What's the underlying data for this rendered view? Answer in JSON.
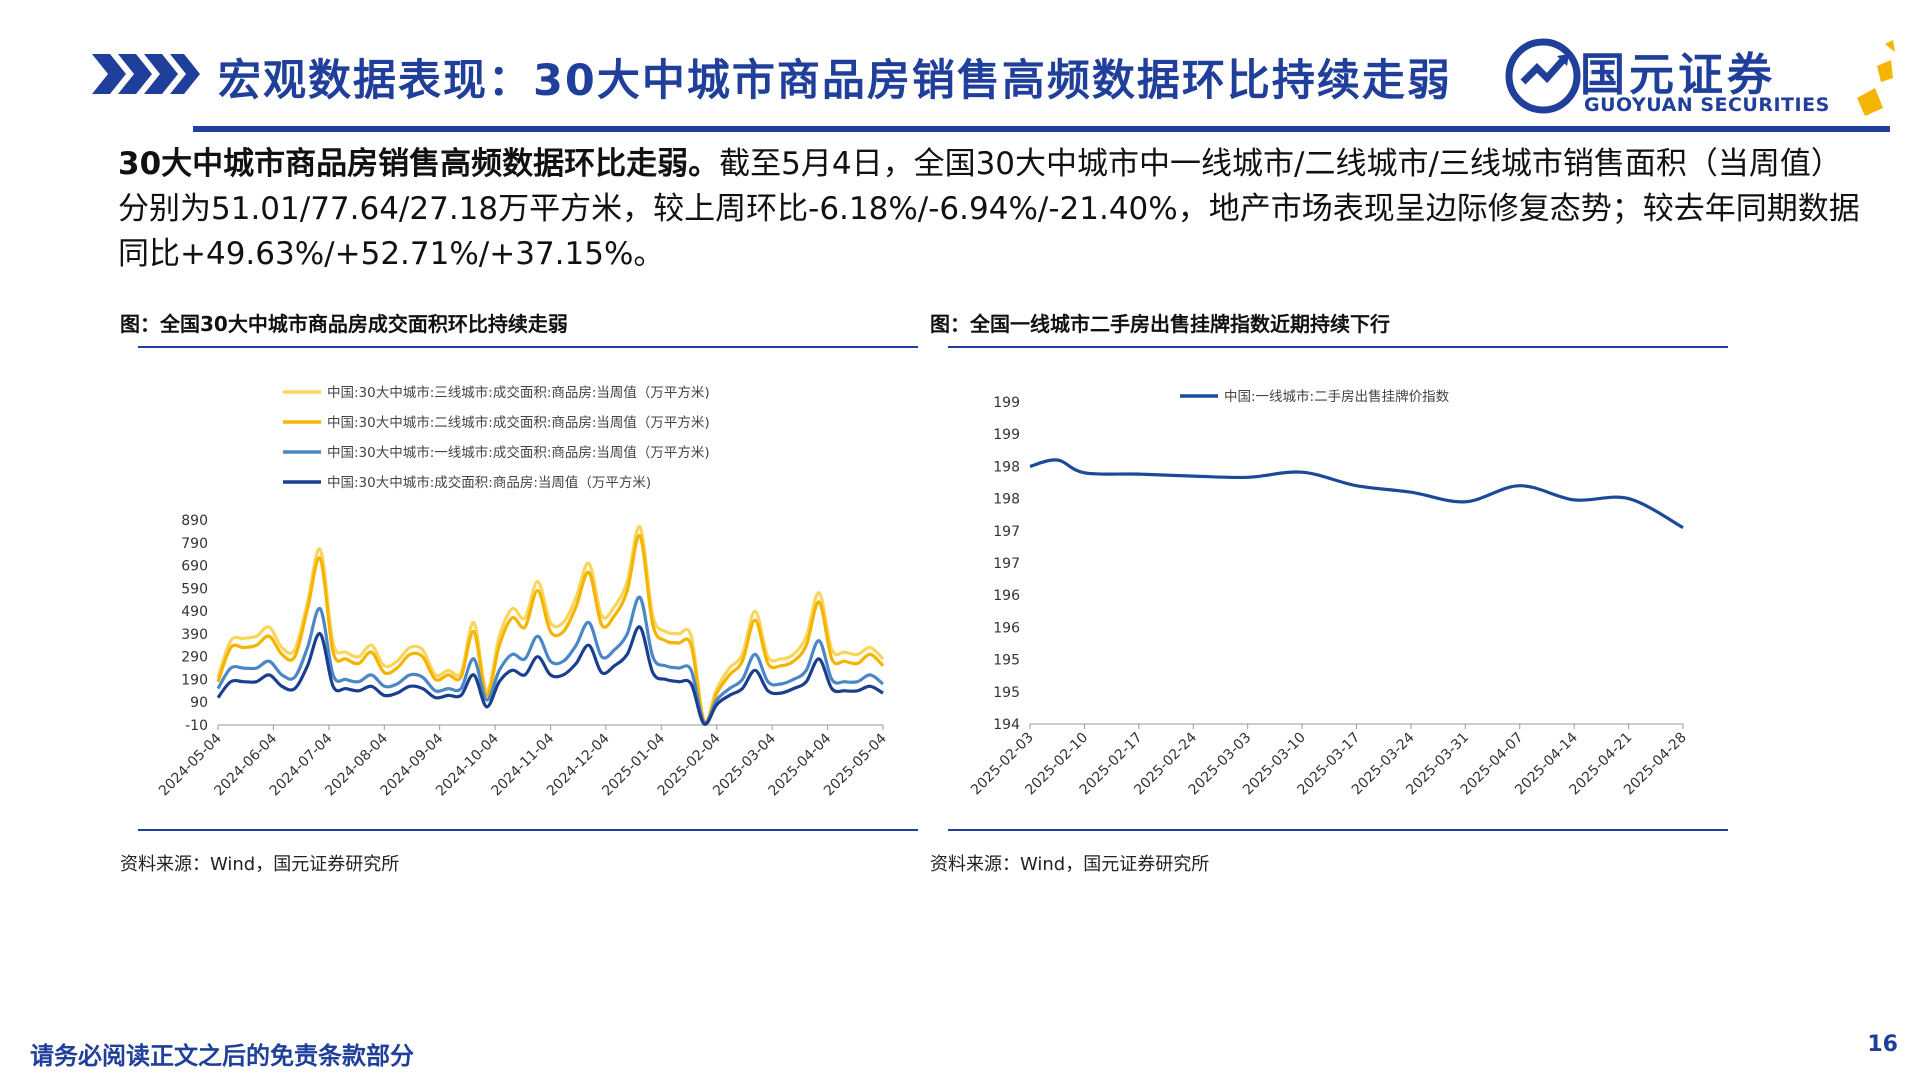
{
  "header": {
    "title": "宏观数据表现：30大中城市商品房销售高频数据环比持续走弱",
    "logo_cn": "国元证券",
    "logo_en": "GUOYUAN SECURITIES",
    "brand_color": "#1f3f9a",
    "accent_color": "#f5b400"
  },
  "summary": {
    "lead": "30大中城市商品房销售高频数据环比走弱。",
    "body": "截至5月4日，全国30大中城市中一线城市/二线城市/三线城市销售面积（当周值）分别为51.01/77.64/27.18万平方米，较上周环比-6.18%/-6.94%/-21.40%，地产市场表现呈边际修复态势；较去年同期数据同比+49.63%/+52.71%/+37.15%。"
  },
  "left_figure": {
    "caption": "图：全国30大中城市商品房成交面积环比持续走弱",
    "source": "资料来源：Wind，国元证券研究所"
  },
  "right_figure": {
    "caption": "图：全国一线城市二手房出售挂牌指数近期持续下行",
    "source": "资料来源：Wind，国元证券研究所"
  },
  "footer": {
    "disclaimer": "请务必阅读正文之后的免责条款部分",
    "page": "16"
  },
  "chart_data": [
    {
      "type": "line",
      "title": "",
      "xlabel": "",
      "ylabel": "",
      "ylim": [
        -10,
        890
      ],
      "yticks": [
        "890",
        "790",
        "690",
        "590",
        "490",
        "390",
        "290",
        "190",
        "90",
        "-10"
      ],
      "xticks": [
        "2024-05-04",
        "2024-06-04",
        "2024-07-04",
        "2024-08-04",
        "2024-09-04",
        "2024-10-04",
        "2024-11-04",
        "2024-12-04",
        "2025-01-04",
        "2025-02-04",
        "2025-03-04",
        "2025-04-04",
        "2025-05-04"
      ],
      "legend_position": "top",
      "series": [
        {
          "name": "中国:30大中城市:三线城市:成交面积:商品房:当周值（万平方米)",
          "color": "#f9d55c",
          "values": [
            200,
            360,
            370,
            380,
            420,
            330,
            320,
            530,
            760,
            350,
            310,
            290,
            340,
            250,
            270,
            330,
            320,
            210,
            230,
            220,
            440,
            140,
            380,
            500,
            460,
            620,
            440,
            440,
            550,
            700,
            470,
            510,
            620,
            860,
            470,
            400,
            390,
            380,
            10,
            150,
            240,
            300,
            490,
            290,
            280,
            300,
            380,
            570,
            320,
            310,
            300,
            330,
            280
          ]
        },
        {
          "name": "中国:30大中城市:二线城市:成交面积:商品房:当周值（万平方米)",
          "color": "#f5b400",
          "values": [
            180,
            330,
            330,
            340,
            380,
            300,
            290,
            500,
            720,
            310,
            280,
            260,
            310,
            220,
            240,
            300,
            290,
            190,
            210,
            200,
            400,
            120,
            340,
            460,
            420,
            580,
            400,
            400,
            510,
            660,
            430,
            470,
            580,
            820,
            430,
            360,
            350,
            340,
            5,
            130,
            210,
            270,
            450,
            260,
            250,
            270,
            340,
            530,
            280,
            270,
            260,
            300,
            250
          ]
        },
        {
          "name": "中国:30大中城市:一线城市:成交面积:商品房:当周值（万平方米)",
          "color": "#4a86c8",
          "values": [
            150,
            240,
            240,
            240,
            270,
            210,
            200,
            330,
            500,
            210,
            190,
            180,
            210,
            160,
            170,
            210,
            200,
            140,
            150,
            150,
            280,
            100,
            230,
            300,
            280,
            380,
            270,
            270,
            340,
            440,
            290,
            320,
            390,
            550,
            290,
            250,
            240,
            230,
            0,
            100,
            150,
            190,
            300,
            180,
            170,
            190,
            230,
            360,
            190,
            180,
            180,
            210,
            170
          ]
        },
        {
          "name": "中国:30大中城市:成交面积:商品房:当周值（万平方米)",
          "color": "#1a3f8f",
          "values": [
            110,
            180,
            180,
            180,
            210,
            160,
            150,
            250,
            390,
            160,
            150,
            140,
            160,
            120,
            130,
            160,
            150,
            110,
            120,
            120,
            210,
            70,
            180,
            230,
            210,
            290,
            210,
            210,
            260,
            340,
            220,
            250,
            300,
            420,
            220,
            190,
            180,
            170,
            -5,
            80,
            120,
            150,
            230,
            140,
            130,
            150,
            180,
            280,
            150,
            140,
            140,
            160,
            130
          ]
        }
      ]
    },
    {
      "type": "line",
      "title": "",
      "xlabel": "",
      "ylabel": "",
      "ylim": [
        194,
        199
      ],
      "yticks": [
        "199",
        "199",
        "198",
        "198",
        "197",
        "197",
        "196",
        "196",
        "195",
        "195",
        "194"
      ],
      "xticks": [
        "2025-02-03",
        "2025-02-10",
        "2025-02-17",
        "2025-02-24",
        "2025-03-03",
        "2025-03-10",
        "2025-03-17",
        "2025-03-24",
        "2025-03-31",
        "2025-04-07",
        "2025-04-14",
        "2025-04-21",
        "2025-04-28"
      ],
      "legend_position": "top",
      "series": [
        {
          "name": "中国:一线城市:二手房出售挂牌价指数",
          "color": "#1a4a98",
          "x": [
            0,
            0.5,
            1,
            2,
            3,
            4,
            5,
            6,
            7,
            8,
            9,
            10,
            11,
            12
          ],
          "values": [
            198.0,
            198.1,
            197.9,
            197.88,
            197.85,
            197.83,
            197.91,
            197.7,
            197.6,
            197.45,
            197.7,
            197.48,
            197.5,
            197.05
          ]
        }
      ]
    }
  ]
}
